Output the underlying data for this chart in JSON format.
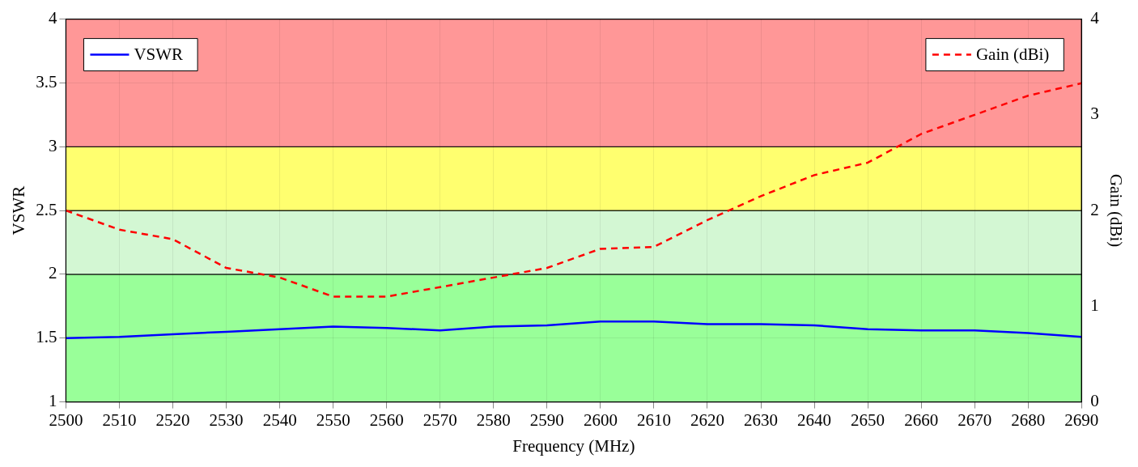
{
  "chart_data": {
    "type": "line",
    "xlabel": "Frequency (MHz)",
    "ylabel": "VSWR",
    "y2label": "Gain (dBi)",
    "x": [
      2500,
      2510,
      2520,
      2530,
      2540,
      2550,
      2560,
      2570,
      2580,
      2590,
      2600,
      2610,
      2620,
      2630,
      2640,
      2650,
      2660,
      2670,
      2680,
      2690
    ],
    "series": [
      {
        "name": "VSWR",
        "color": "#0000ff",
        "line_style": "solid",
        "values": [
          1.5,
          1.51,
          1.53,
          1.55,
          1.57,
          1.59,
          1.58,
          1.56,
          1.59,
          1.6,
          1.63,
          1.63,
          1.61,
          1.61,
          1.6,
          1.57,
          1.56,
          1.56,
          1.54,
          1.51
        ]
      },
      {
        "name": "Gain (dBi)",
        "color": "#ff0000",
        "line_style": "dashed",
        "axis": "y2",
        "values": [
          2.0,
          1.8,
          1.7,
          1.4,
          1.3,
          1.1,
          1.1,
          1.2,
          1.3,
          1.4,
          1.6,
          1.62,
          1.9,
          2.15,
          2.37,
          2.5,
          2.8,
          3.0,
          3.2,
          3.33
        ]
      }
    ],
    "xlim": [
      2500,
      2690
    ],
    "xticks": [
      2500,
      2510,
      2520,
      2530,
      2540,
      2550,
      2560,
      2570,
      2580,
      2590,
      2600,
      2610,
      2620,
      2630,
      2640,
      2650,
      2660,
      2670,
      2680,
      2690
    ],
    "ylim": [
      1,
      4
    ],
    "yticks": [
      1,
      1.5,
      2,
      2.5,
      3,
      3.5,
      4
    ],
    "y2lim": [
      0,
      4
    ],
    "y2ticks": [
      0,
      1,
      2,
      3,
      4
    ],
    "bands": [
      {
        "axis": "y",
        "from": 1,
        "to": 2,
        "color": "#99ff99"
      },
      {
        "axis": "y",
        "from": 2,
        "to": 2.5,
        "color": "#d3f7d3"
      },
      {
        "axis": "y",
        "from": 2.5,
        "to": 3,
        "color": "#ffff6f"
      },
      {
        "axis": "y",
        "from": 3,
        "to": 4,
        "color": "#ff9797"
      }
    ],
    "grid": true,
    "legend": "top",
    "marker": "none"
  }
}
